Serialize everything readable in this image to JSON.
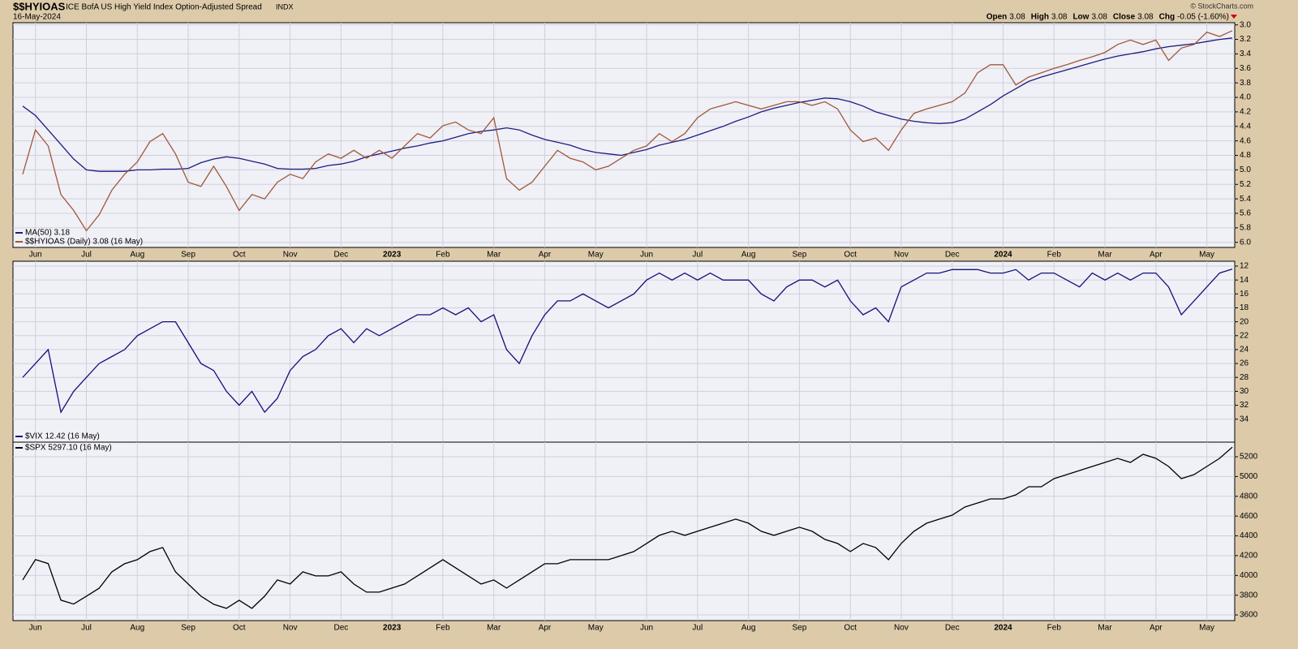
{
  "header": {
    "symbol": "$$HYIOAS",
    "name": "ICE BofA US High Yield Index Option-Adjusted Spread",
    "exchange": "INDX",
    "date": "16-May-2024",
    "stats": [
      {
        "label": "Open",
        "value": "3.08"
      },
      {
        "label": "High",
        "value": "3.08"
      },
      {
        "label": "Low",
        "value": "3.08"
      },
      {
        "label": "Close",
        "value": "3.08"
      },
      {
        "label": "Chg",
        "value": "-0.05 (-1.60%)"
      }
    ],
    "credit": "© StockCharts.com"
  },
  "chart_data": [
    {
      "type": "line",
      "inverted": true,
      "legend": "bottom-left",
      "grid": true,
      "categories": [
        null,
        "Jun",
        null,
        null,
        null,
        "Jul",
        null,
        null,
        null,
        "Aug",
        null,
        null,
        null,
        "Sep",
        null,
        null,
        null,
        "Oct",
        null,
        null,
        null,
        "Nov",
        null,
        null,
        null,
        "Dec",
        null,
        null,
        null,
        "2023",
        null,
        null,
        null,
        "Feb",
        null,
        null,
        null,
        "Mar",
        null,
        null,
        null,
        "Apr",
        null,
        null,
        null,
        "May",
        null,
        null,
        null,
        "Jun",
        null,
        null,
        null,
        "Jul",
        null,
        null,
        null,
        "Aug",
        null,
        null,
        null,
        "Sep",
        null,
        null,
        null,
        "Oct",
        null,
        null,
        null,
        "Nov",
        null,
        null,
        null,
        "Dec",
        null,
        null,
        null,
        "2024",
        null,
        null,
        null,
        "Feb",
        null,
        null,
        null,
        "Mar",
        null,
        null,
        null,
        "Apr",
        null,
        null,
        null,
        "May",
        null,
        null
      ],
      "series": [
        {
          "name": "MA(50) 3.18",
          "color": "#1c1c80",
          "values": [
            4.12,
            4.25,
            4.45,
            4.65,
            4.85,
            5.0,
            5.02,
            5.02,
            5.02,
            5.0,
            5.0,
            4.99,
            4.99,
            4.98,
            4.9,
            4.85,
            4.82,
            4.84,
            4.88,
            4.92,
            4.98,
            4.99,
            4.99,
            4.98,
            4.94,
            4.92,
            4.88,
            4.82,
            4.78,
            4.74,
            4.7,
            4.67,
            4.63,
            4.6,
            4.55,
            4.5,
            4.47,
            4.45,
            4.42,
            4.45,
            4.52,
            4.58,
            4.62,
            4.66,
            4.72,
            4.76,
            4.78,
            4.8,
            4.76,
            4.72,
            4.66,
            4.62,
            4.58,
            4.52,
            4.46,
            4.4,
            4.33,
            4.27,
            4.2,
            4.15,
            4.11,
            4.07,
            4.04,
            4.01,
            4.02,
            4.06,
            4.12,
            4.2,
            4.25,
            4.3,
            4.33,
            4.35,
            4.36,
            4.35,
            4.3,
            4.2,
            4.1,
            3.98,
            3.88,
            3.78,
            3.72,
            3.67,
            3.62,
            3.57,
            3.52,
            3.47,
            3.43,
            3.4,
            3.37,
            3.33,
            3.3,
            3.28,
            3.26,
            3.23,
            3.2,
            3.18
          ]
        },
        {
          "name": "$$HYIOAS (Daily) 3.08 (16 May)",
          "color": "#a0583a",
          "values": [
            5.06,
            4.45,
            4.67,
            5.34,
            5.56,
            5.84,
            5.62,
            5.28,
            5.06,
            4.89,
            4.61,
            4.5,
            4.78,
            5.17,
            5.23,
            4.95,
            5.23,
            5.56,
            5.34,
            5.4,
            5.17,
            5.06,
            5.12,
            4.89,
            4.78,
            4.84,
            4.73,
            4.84,
            4.73,
            4.84,
            4.67,
            4.5,
            4.56,
            4.39,
            4.34,
            4.45,
            4.5,
            4.28,
            5.12,
            5.28,
            5.17,
            4.95,
            4.73,
            4.84,
            4.89,
            5.0,
            4.95,
            4.84,
            4.73,
            4.67,
            4.5,
            4.61,
            4.5,
            4.28,
            4.16,
            4.11,
            4.06,
            4.11,
            4.16,
            4.11,
            4.06,
            4.06,
            4.11,
            4.06,
            4.16,
            4.45,
            4.61,
            4.56,
            4.73,
            4.45,
            4.22,
            4.16,
            4.11,
            4.06,
            3.94,
            3.66,
            3.55,
            3.55,
            3.83,
            3.72,
            3.66,
            3.6,
            3.55,
            3.49,
            3.44,
            3.38,
            3.27,
            3.21,
            3.27,
            3.21,
            3.49,
            3.32,
            3.27,
            3.1,
            3.16,
            3.08
          ]
        }
      ],
      "ylim": [
        2.97,
        6.07
      ],
      "yticks": [
        {
          "value": 3,
          "label": "3.0"
        },
        {
          "value": 3.2,
          "label": "3.2"
        },
        {
          "value": 3.4,
          "label": "3.4"
        },
        {
          "value": 3.6,
          "label": "3.6"
        },
        {
          "value": 3.8,
          "label": "3.8"
        },
        {
          "value": 4,
          "label": "4.0"
        },
        {
          "value": 4.2,
          "label": "4.2"
        },
        {
          "value": 4.4,
          "label": "4.4"
        },
        {
          "value": 4.6,
          "label": "4.6"
        },
        {
          "value": 4.8,
          "label": "4.8"
        },
        {
          "value": 5,
          "label": "5.0"
        },
        {
          "value": 5.2,
          "label": "5.2"
        },
        {
          "value": 5.4,
          "label": "5.4"
        },
        {
          "value": 5.6,
          "label": "5.6"
        },
        {
          "value": 5.8,
          "label": "5.8"
        },
        {
          "value": 6,
          "label": "6.0"
        }
      ]
    },
    {
      "type": "line",
      "inverted": true,
      "legend": "bottom-left",
      "grid": true,
      "series": [
        {
          "name": "$VIX 12.42 (16 May)",
          "color": "#10107a",
          "values": [
            28,
            26,
            24,
            33,
            30,
            28,
            26,
            25,
            24,
            22,
            21,
            20,
            20,
            23,
            26,
            27,
            30,
            32,
            30,
            33,
            31,
            27,
            25,
            24,
            22,
            21,
            23,
            21,
            22,
            21,
            20,
            19,
            19,
            18,
            19,
            18,
            20,
            19,
            24,
            26,
            22,
            19,
            17,
            17,
            16,
            17,
            18,
            17,
            16,
            14,
            13,
            14,
            13,
            14,
            13,
            14,
            14,
            14,
            16,
            17,
            15,
            14,
            14,
            15,
            14,
            17,
            19,
            18,
            20,
            15,
            14,
            13,
            13,
            12.5,
            12.5,
            12.5,
            13,
            13,
            12.5,
            14,
            13,
            13,
            14,
            15,
            13,
            14,
            13,
            14,
            13,
            13,
            15,
            19,
            17,
            15,
            13,
            12.42
          ]
        }
      ],
      "ylim": [
        11.3,
        37.3
      ],
      "yticks": [
        12,
        14,
        16,
        18,
        20,
        22,
        24,
        26,
        28,
        30,
        32,
        34
      ]
    },
    {
      "type": "line",
      "inverted": false,
      "legend": "top-left",
      "grid": true,
      "categories": [
        null,
        "Jun",
        null,
        null,
        null,
        "Jul",
        null,
        null,
        null,
        "Aug",
        null,
        null,
        null,
        "Sep",
        null,
        null,
        null,
        "Oct",
        null,
        null,
        null,
        "Nov",
        null,
        null,
        null,
        "Dec",
        null,
        null,
        null,
        "2023",
        null,
        null,
        null,
        "Feb",
        null,
        null,
        null,
        "Mar",
        null,
        null,
        null,
        "Apr",
        null,
        null,
        null,
        "May",
        null,
        null,
        null,
        "Jun",
        null,
        null,
        null,
        "Jul",
        null,
        null,
        null,
        "Aug",
        null,
        null,
        null,
        "Sep",
        null,
        null,
        null,
        "Oct",
        null,
        null,
        null,
        "Nov",
        null,
        null,
        null,
        "Dec",
        null,
        null,
        null,
        "2024",
        null,
        null,
        null,
        "Feb",
        null,
        null,
        null,
        "Mar",
        null,
        null,
        null,
        "Apr",
        null,
        null,
        null,
        "May",
        null,
        null
      ],
      "series": [
        {
          "name": "$SPX 5297.10 (16 May)",
          "color": "#000000",
          "values": [
            3954,
            4160,
            4120,
            3750,
            3710,
            3790,
            3870,
            4036,
            4118,
            4159,
            4241,
            4282,
            4036,
            3913,
            3790,
            3708,
            3667,
            3749,
            3667,
            3790,
            3954,
            3913,
            4036,
            3995,
            3995,
            4036,
            3913,
            3831,
            3831,
            3872,
            3913,
            3995,
            4077,
            4159,
            4077,
            3995,
            3913,
            3954,
            3872,
            3954,
            4036,
            4118,
            4118,
            4159,
            4159,
            4159,
            4159,
            4200,
            4241,
            4323,
            4405,
            4446,
            4405,
            4446,
            4487,
            4528,
            4569,
            4528,
            4446,
            4405,
            4446,
            4487,
            4446,
            4364,
            4323,
            4241,
            4323,
            4282,
            4159,
            4323,
            4446,
            4528,
            4569,
            4610,
            4692,
            4733,
            4774,
            4774,
            4815,
            4897,
            4897,
            4979,
            5020,
            5061,
            5102,
            5143,
            5184,
            5143,
            5225,
            5184,
            5102,
            4979,
            5020,
            5102,
            5184,
            5297.1
          ]
        }
      ],
      "ylim": [
        3543,
        5348
      ],
      "yticks": [
        3600,
        3800,
        4000,
        4200,
        4400,
        4600,
        4800,
        5000,
        5200
      ]
    }
  ]
}
